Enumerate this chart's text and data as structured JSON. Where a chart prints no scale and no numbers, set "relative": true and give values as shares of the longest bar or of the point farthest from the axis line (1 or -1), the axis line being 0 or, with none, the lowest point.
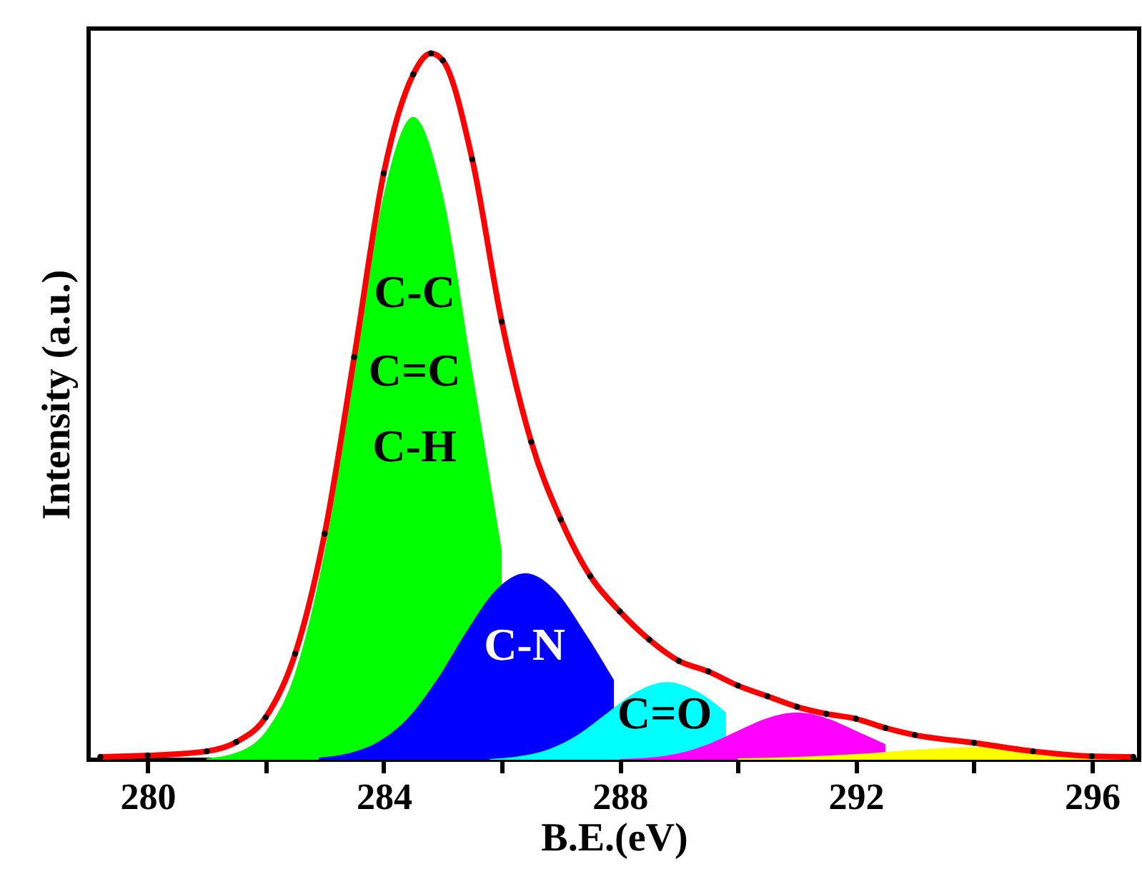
{
  "chart_data": {
    "type": "area",
    "xlabel": "B.E.(eV)",
    "ylabel": "Intensity (a.u.)",
    "relative": true,
    "xlim": [
      279,
      296.8
    ],
    "xticks": [
      280,
      {
        "value": 282,
        "label": null
      },
      284,
      {
        "value": 286,
        "label": null
      },
      288,
      {
        "value": 290,
        "label": null
      },
      292,
      {
        "value": 294,
        "label": null
      },
      296
    ],
    "series": [
      {
        "color": "#00ff00",
        "x": [
          281,
          281.5,
          282,
          282.5,
          283,
          283.5,
          284,
          284.5,
          285,
          285.5,
          286
        ],
        "values": [
          0.002,
          0.01,
          0.04,
          0.123,
          0.296,
          0.55,
          0.8,
          0.91,
          0.8,
          0.55,
          0.296
        ]
      },
      {
        "color": "#0000ff",
        "x": [
          282.9,
          283.4,
          283.9,
          284.4,
          284.9,
          285.4,
          285.9,
          286.4,
          286.9,
          287.4,
          287.9
        ],
        "values": [
          0.003,
          0.009,
          0.025,
          0.058,
          0.113,
          0.181,
          0.24,
          0.264,
          0.24,
          0.181,
          0.113
        ]
      },
      {
        "color": "#00ffff",
        "x": [
          285.8,
          286.3,
          286.8,
          287.3,
          287.8,
          288.3,
          288.8,
          289.3,
          289.8
        ],
        "values": [
          0.001,
          0.005,
          0.015,
          0.036,
          0.067,
          0.097,
          0.11,
          0.097,
          0.067
        ]
      },
      {
        "color": "#ff00ff",
        "x": [
          288,
          288.5,
          289,
          289.5,
          290,
          290.5,
          291,
          291.5,
          292,
          292.5
        ],
        "values": [
          0.001,
          0.003,
          0.009,
          0.022,
          0.041,
          0.059,
          0.067,
          0.059,
          0.041,
          0.022
        ]
      },
      {
        "color": "#ffff00",
        "x": [
          290,
          291,
          292,
          293,
          294,
          295,
          296,
          296.5
        ],
        "values": [
          0.002,
          0.004,
          0.008,
          0.014,
          0.018,
          0.014,
          0.008,
          0.006
        ]
      },
      {
        "type": "scatter",
        "color": "#000000",
        "marker": "circle",
        "x": [
          279.2,
          280,
          281,
          281.5,
          282,
          282.5,
          283,
          283.5,
          284,
          284.5,
          284.8,
          285,
          285.5,
          286,
          286.5,
          287,
          287.5,
          288,
          288.5,
          289,
          289.5,
          290,
          290.5,
          291,
          291.5,
          292,
          292.5,
          293,
          294,
          295,
          296,
          296.7
        ],
        "values": [
          0.004,
          0.006,
          0.012,
          0.025,
          0.06,
          0.15,
          0.32,
          0.57,
          0.83,
          0.97,
          1.0,
          0.99,
          0.85,
          0.62,
          0.45,
          0.34,
          0.26,
          0.21,
          0.17,
          0.14,
          0.125,
          0.105,
          0.09,
          0.075,
          0.065,
          0.058,
          0.045,
          0.035,
          0.024,
          0.012,
          0.005,
          0.004
        ]
      },
      {
        "type": "line",
        "color": "#ff0000",
        "x": [
          279.2,
          280,
          281,
          281.5,
          282,
          282.5,
          283,
          283.5,
          284,
          284.5,
          284.8,
          285,
          285.5,
          286,
          286.5,
          287,
          287.5,
          288,
          288.5,
          289,
          289.5,
          290,
          290.5,
          291,
          291.5,
          292,
          292.5,
          293,
          294,
          295,
          296,
          296.7
        ],
        "values": [
          0.004,
          0.006,
          0.012,
          0.025,
          0.06,
          0.15,
          0.32,
          0.57,
          0.83,
          0.97,
          1.0,
          0.99,
          0.85,
          0.62,
          0.45,
          0.34,
          0.26,
          0.21,
          0.17,
          0.14,
          0.125,
          0.105,
          0.09,
          0.075,
          0.065,
          0.058,
          0.045,
          0.035,
          0.024,
          0.012,
          0.005,
          0.004
        ]
      }
    ],
    "annotations": [
      "C-C",
      "C=C",
      "C-H",
      "C-N",
      "C=O"
    ]
  }
}
